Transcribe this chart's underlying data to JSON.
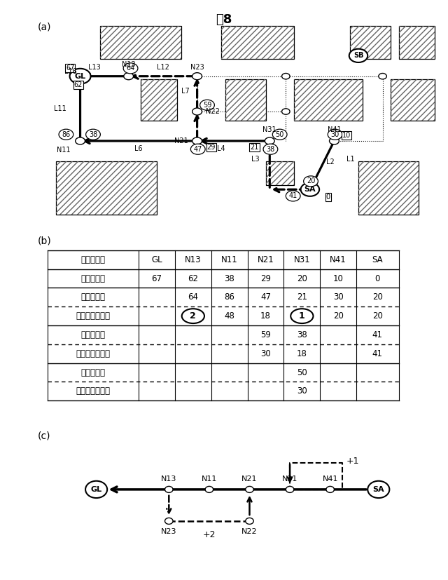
{
  "title": "図8",
  "sec_a": "(a)",
  "sec_b": "(b)",
  "sec_c": "(c)",
  "table_headers": [
    "最適ノード",
    "GL",
    "N13",
    "N11",
    "N21",
    "N31",
    "N41",
    "SA"
  ],
  "table_rows": [
    [
      "確定ラベル",
      "67",
      "62",
      "38",
      "29",
      "20",
      "10",
      "0"
    ],
    [
      "負けラベル",
      "",
      "64",
      "86",
      "47",
      "21",
      "30",
      "20"
    ],
    [
      "経路別コスト差",
      "",
      "2",
      "48",
      "18",
      "1",
      "20",
      "20"
    ],
    [
      "負けラベル",
      "",
      "",
      "",
      "59",
      "38",
      "",
      "41"
    ],
    [
      "経路別コスト差",
      "",
      "",
      "",
      "30",
      "18",
      "",
      "41"
    ],
    [
      "負けラベル",
      "",
      "",
      "",
      "",
      "50",
      "",
      ""
    ],
    [
      "経路別コスト差",
      "",
      "",
      "",
      "",
      "30",
      "",
      ""
    ]
  ],
  "circled_cells": [
    [
      2,
      2
    ],
    [
      2,
      5
    ]
  ],
  "row_border_styles": [
    "solid",
    "solid",
    "solid",
    "dashed",
    "solid",
    "dashed",
    "solid",
    "dashed",
    "solid"
  ]
}
